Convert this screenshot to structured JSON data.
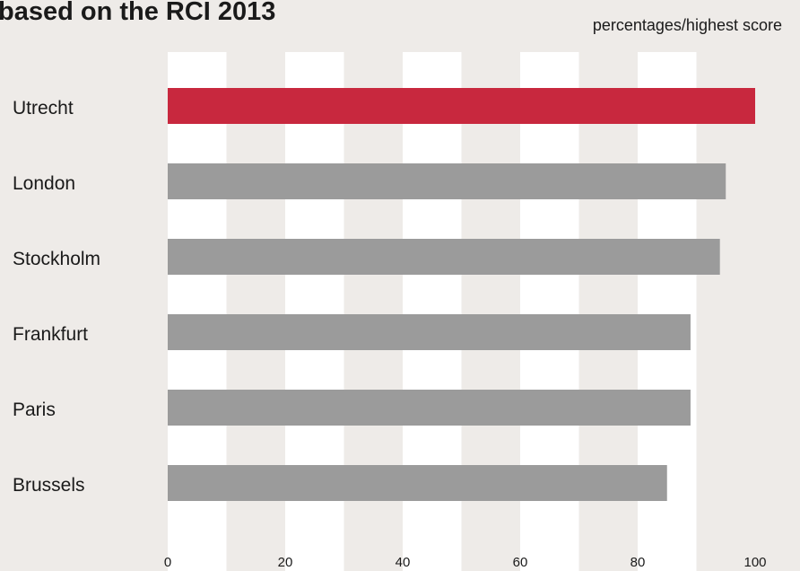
{
  "chart_data": {
    "type": "barh",
    "title": "based on the RCI 2013",
    "subtitle": "percentages/highest score",
    "categories": [
      "Utrecht",
      "London",
      "Stockholm",
      "Frankfurt",
      "Paris",
      "Brussels"
    ],
    "values": [
      100,
      95,
      94,
      89,
      89,
      85
    ],
    "colors": [
      "#c8283e",
      "#9b9b9b",
      "#9b9b9b",
      "#9b9b9b",
      "#9b9b9b",
      "#9b9b9b"
    ],
    "xlim": [
      0,
      100
    ],
    "xticks": [
      0,
      20,
      40,
      60,
      80,
      100
    ],
    "grid": true
  }
}
